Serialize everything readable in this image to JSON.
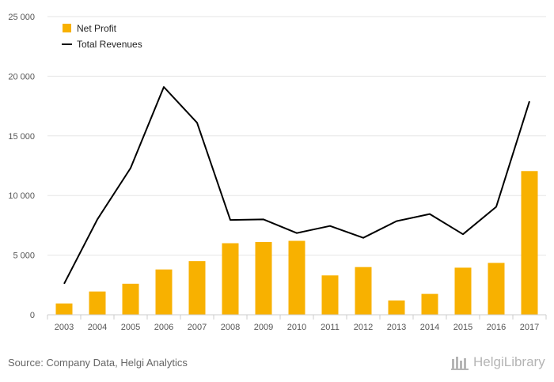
{
  "chart_data": {
    "type": "bar",
    "categories": [
      "2003",
      "2004",
      "2005",
      "2006",
      "2007",
      "2008",
      "2009",
      "2010",
      "2011",
      "2012",
      "2013",
      "2014",
      "2015",
      "2016",
      "2017"
    ],
    "series": [
      {
        "name": "Net Profit",
        "type": "bar",
        "color": "#f8b100",
        "values": [
          950,
          1950,
          2600,
          3800,
          4500,
          6000,
          6100,
          6200,
          3300,
          4000,
          1200,
          1750,
          3950,
          4350,
          12050
        ]
      },
      {
        "name": "Total Revenues",
        "type": "line",
        "color": "#000000",
        "values": [
          2600,
          8000,
          12300,
          19100,
          16100,
          7950,
          8000,
          6850,
          7450,
          6450,
          7850,
          8450,
          6750,
          9050,
          17900
        ]
      }
    ],
    "ylim": [
      0,
      25000
    ],
    "yticks": [
      0,
      5000,
      10000,
      15000,
      20000,
      25000
    ],
    "ytick_labels": [
      "0",
      "5 000",
      "10 000",
      "15 000",
      "20 000",
      "25 000"
    ],
    "grid": true,
    "legend_position": "top-left"
  },
  "source_text": "Source: Company Data, Helgi Analytics",
  "logo_text": "HelgiLibrary"
}
